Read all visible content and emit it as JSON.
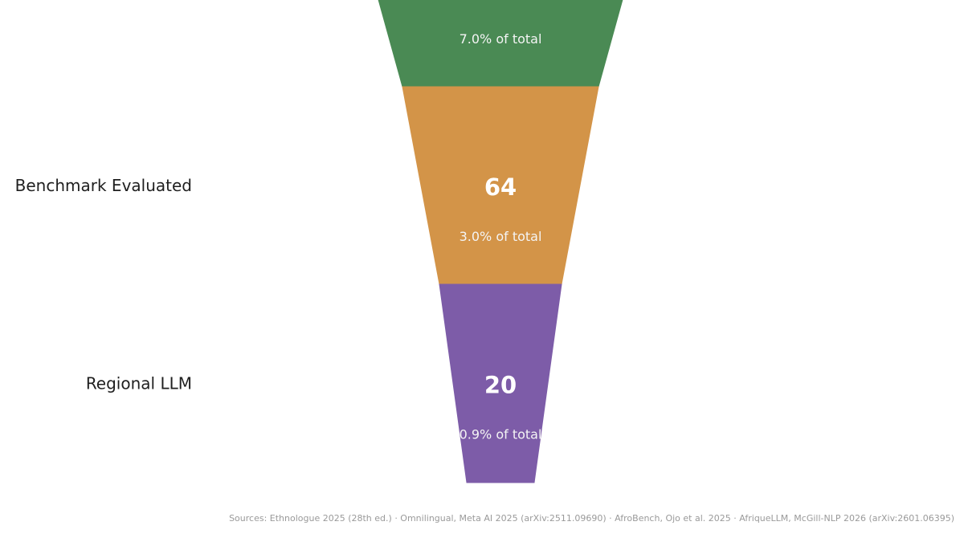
{
  "chart_data": {
    "type": "funnel",
    "stages": [
      {
        "label": "",
        "value": "",
        "share": "7.0% of total",
        "color": "#4a8a54"
      },
      {
        "label": "Benchmark Evaluated",
        "value": "64",
        "share": "3.0% of total",
        "color": "#d39448"
      },
      {
        "label": "Regional LLM",
        "value": "20",
        "share": "0.9% of total",
        "color": "#7d5ca8"
      }
    ],
    "footnote": "Sources: Ethnologue 2025 (28th ed.)  ·  Omnilingual, Meta AI 2025 (arXiv:2511.09690)  ·  AfroBench, Ojo et al. 2025  ·  AfriqueLLM, McGill-NLP 2026 (arXiv:2601.06395)"
  }
}
